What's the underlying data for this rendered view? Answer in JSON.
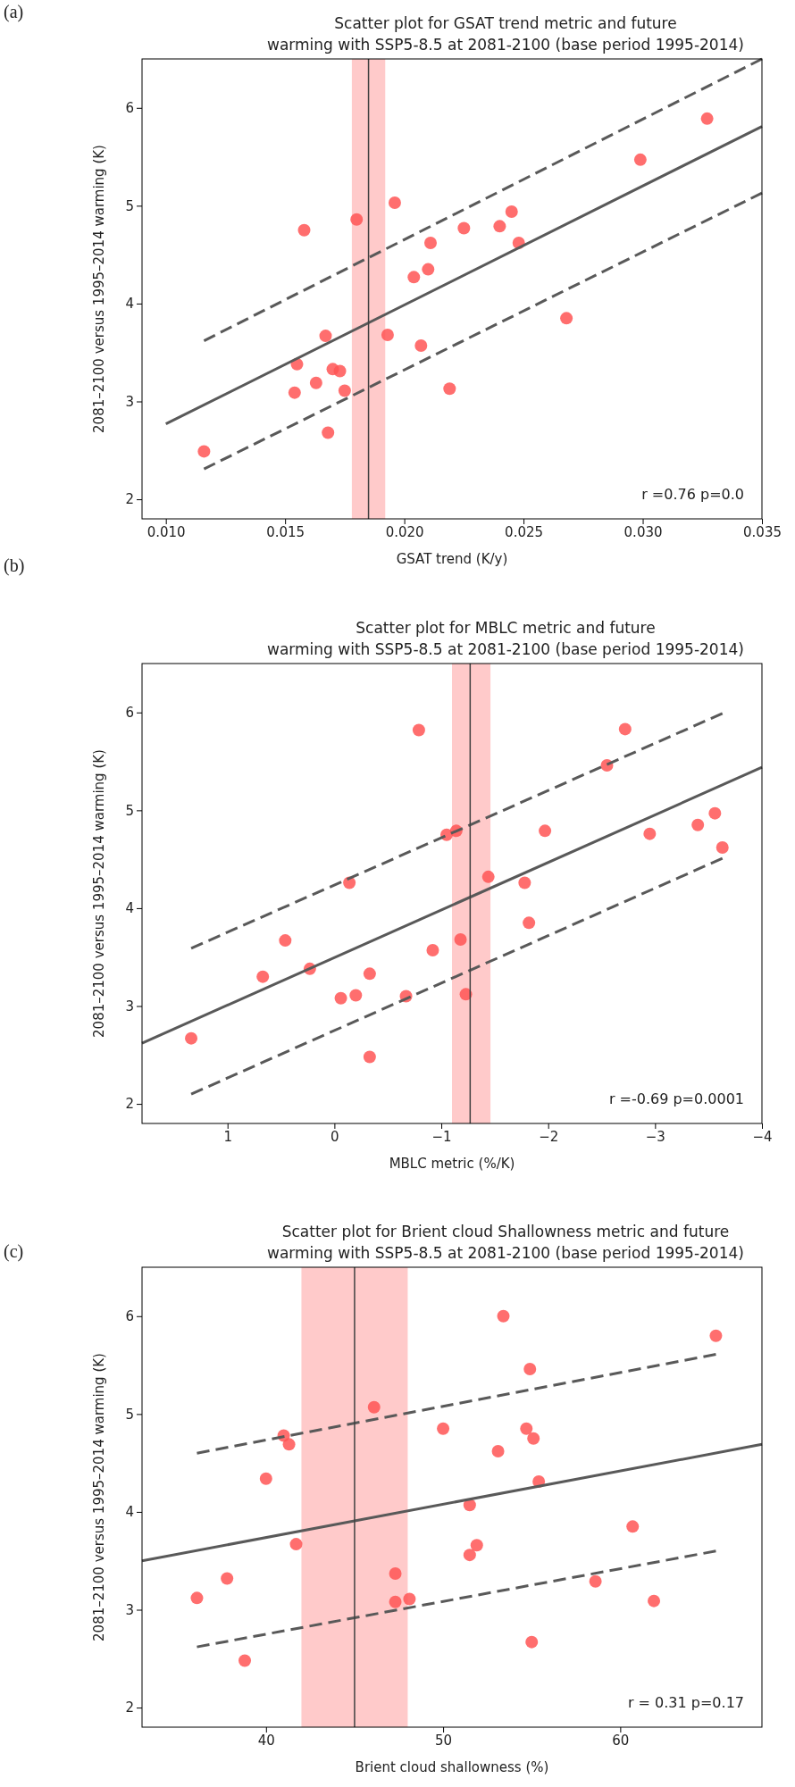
{
  "chart_data": [
    {
      "type": "scatter",
      "title": "Scatter plot for GSAT trend metric and future\nwarming with SSP5-8.5 at 2081-2100 (base period 1995-2014)",
      "xlabel": "GSAT trend (K/y)",
      "ylabel": "2081–2100 versus 1995–2014 warming (K)",
      "annotations": [
        "(a)",
        "r =0.76 p=0.0"
      ],
      "xlim": [
        0.009,
        0.035
      ],
      "xticks": [
        {
          "value": 0.01,
          "label": "0.010"
        },
        {
          "value": 0.015,
          "label": "0.015"
        },
        {
          "value": 0.02,
          "label": "0.020"
        },
        {
          "value": 0.025,
          "label": "0.025"
        },
        {
          "value": 0.03,
          "label": "0.030"
        },
        {
          "value": 0.035,
          "label": "0.035"
        }
      ],
      "ylim": [
        1.8,
        6.5
      ],
      "yticks": [
        2,
        3,
        4,
        5,
        6
      ],
      "ref_lines": [
        {
          "axis": "x",
          "value": 0.0185,
          "color": "#404040"
        }
      ],
      "bands": [
        {
          "axis": "x",
          "from": 0.0178,
          "to": 0.0192,
          "color": "#ffcaca"
        }
      ],
      "series": [
        {
          "marker": "circle",
          "color": "#ff5555",
          "x": [
            0.0116,
            0.0158,
            0.0154,
            0.0155,
            0.0163,
            0.0167,
            0.0168,
            0.017,
            0.0173,
            0.0175,
            0.018,
            0.0193,
            0.0196,
            0.0204,
            0.0207,
            0.021,
            0.0211,
            0.0219,
            0.0225,
            0.024,
            0.0245,
            0.0248,
            0.0268,
            0.0299,
            0.0327
          ],
          "values": [
            2.49,
            4.75,
            3.09,
            3.38,
            3.19,
            3.67,
            2.68,
            3.33,
            3.31,
            3.11,
            4.86,
            3.68,
            5.03,
            4.27,
            3.57,
            4.35,
            4.62,
            3.13,
            4.77,
            4.79,
            4.94,
            4.62,
            3.85,
            5.47,
            5.89
          ]
        },
        {
          "type": "line",
          "color": "#595959",
          "line_style": "solid",
          "x": [
            0.01,
            0.035
          ],
          "values": [
            2.77,
            5.81
          ]
        },
        {
          "type": "line",
          "color": "#595959",
          "line_style": "dashed",
          "x": [
            0.0116,
            0.035
          ],
          "values": [
            3.62,
            6.5
          ]
        },
        {
          "type": "line",
          "color": "#595959",
          "line_style": "dashed",
          "x": [
            0.0116,
            0.035
          ],
          "values": [
            2.31,
            5.13
          ]
        }
      ]
    },
    {
      "type": "scatter",
      "title": "Scatter plot for MBLC metric and future\nwarming with SSP5-8.5 at 2081-2100 (base period 1995-2014)",
      "xlabel": "MBLC metric (%/K)",
      "ylabel": "2081–2100 versus 1995–2014 warming (K)",
      "annotations": [
        "(b)",
        "r =-0.69 p=0.0001"
      ],
      "xlim": [
        1.8,
        -4
      ],
      "xticks": [
        1,
        0,
        {
          "value": -1,
          "label": "−1"
        },
        {
          "value": -2,
          "label": "−2"
        },
        {
          "value": -3,
          "label": "−3"
        },
        {
          "value": -4,
          "label": "−4"
        }
      ],
      "ylim": [
        1.8,
        6.5
      ],
      "yticks": [
        2,
        3,
        4,
        5,
        6
      ],
      "ref_lines": [
        {
          "axis": "x",
          "value": -1.27,
          "color": "#404040"
        }
      ],
      "bands": [
        {
          "axis": "x",
          "from": -1.1,
          "to": -1.46,
          "color": "#ffcaca"
        }
      ],
      "series": [
        {
          "marker": "circle",
          "color": "#ff5555",
          "x": [
            1.34,
            0.67,
            0.46,
            0.23,
            -0.06,
            -0.14,
            -0.2,
            -0.33,
            -0.33,
            -0.67,
            -0.79,
            -0.92,
            -1.05,
            -1.14,
            -1.18,
            -1.23,
            -1.44,
            -1.78,
            -1.82,
            -1.97,
            -2.55,
            -2.72,
            -2.95,
            -3.4,
            -3.56,
            -3.63
          ],
          "values": [
            2.67,
            3.3,
            3.67,
            3.38,
            3.08,
            4.26,
            3.11,
            3.33,
            2.48,
            3.1,
            5.82,
            3.57,
            4.75,
            4.79,
            3.68,
            3.12,
            4.32,
            4.26,
            3.85,
            4.79,
            5.46,
            5.83,
            4.76,
            4.85,
            4.97,
            4.62
          ]
        },
        {
          "type": "line",
          "color": "#595959",
          "line_style": "solid",
          "x": [
            1.8,
            -4
          ],
          "values": [
            2.62,
            5.44
          ]
        },
        {
          "type": "line",
          "color": "#595959",
          "line_style": "dashed",
          "x": [
            1.34,
            -3.63
          ],
          "values": [
            3.59,
            5.99
          ]
        },
        {
          "type": "line",
          "color": "#595959",
          "line_style": "dashed",
          "x": [
            1.34,
            -3.63
          ],
          "values": [
            2.1,
            4.51
          ]
        }
      ]
    },
    {
      "type": "scatter",
      "title": "Scatter plot for Brient cloud Shallowness metric and future\nwarming with SSP5-8.5 at 2081-2100 (base period 1995-2014)",
      "xlabel": "Brient cloud shallowness (%)",
      "ylabel": "2081–2100 versus 1995–2014 warming (K)",
      "annotations": [
        "(c)",
        "r = 0.31 p=0.17"
      ],
      "xlim": [
        33,
        68
      ],
      "xticks": [
        40,
        50,
        60
      ],
      "ylim": [
        1.8,
        6.5
      ],
      "yticks": [
        2,
        3,
        4,
        5,
        6
      ],
      "ref_lines": [
        {
          "axis": "x",
          "value": 45,
          "color": "#404040"
        }
      ],
      "bands": [
        {
          "axis": "x",
          "from": 42,
          "to": 48,
          "color": "#ffcaca"
        }
      ],
      "series": [
        {
          "marker": "circle",
          "color": "#ff5555",
          "x": [
            36.1,
            37.8,
            38.8,
            40,
            41,
            41.3,
            41.7,
            46.1,
            47.3,
            47.3,
            48.1,
            50,
            51.5,
            51.5,
            51.9,
            53.1,
            53.4,
            54.7,
            54.9,
            55,
            55.1,
            55.4,
            58.6,
            60.7,
            61.9,
            65.4
          ],
          "values": [
            3.12,
            3.32,
            2.48,
            4.34,
            4.78,
            4.69,
            3.67,
            5.07,
            3.37,
            3.08,
            3.11,
            4.85,
            4.07,
            3.56,
            3.66,
            4.62,
            6,
            4.85,
            5.46,
            2.67,
            4.75,
            4.31,
            3.29,
            3.85,
            3.09,
            5.8
          ]
        },
        {
          "type": "line",
          "color": "#595959",
          "line_style": "solid",
          "x": [
            33,
            68
          ],
          "values": [
            3.5,
            4.69
          ]
        },
        {
          "type": "line",
          "color": "#595959",
          "line_style": "dashed",
          "x": [
            36.1,
            65.4
          ],
          "values": [
            4.6,
            5.61
          ]
        },
        {
          "type": "line",
          "color": "#595959",
          "line_style": "dashed",
          "x": [
            36.1,
            65.4
          ],
          "values": [
            2.62,
            3.6
          ]
        }
      ]
    }
  ]
}
